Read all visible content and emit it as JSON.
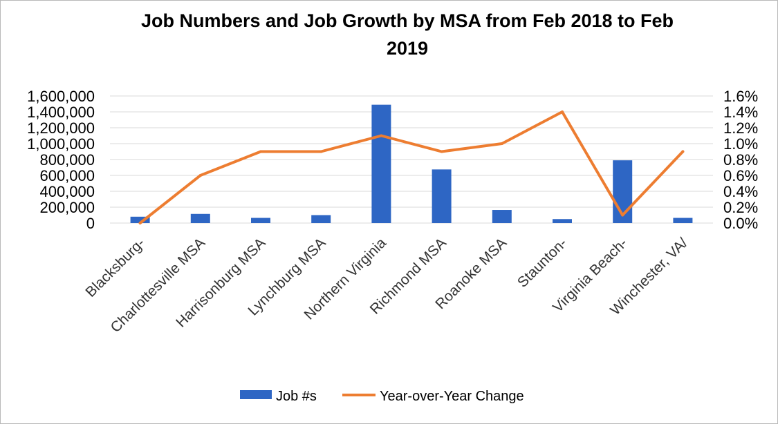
{
  "chart_data": {
    "type": "bar",
    "title_line1": "Job Numbers and Job Growth by MSA from Feb 2018 to Feb",
    "title_line2": "2019",
    "categories": [
      "Blacksburg-",
      "Charlottesville MSA",
      "Harrisonburg MSA",
      "Lynchburg MSA",
      "Northern Virginia",
      "Richmond MSA",
      "Roanoke MSA",
      "Staunton-",
      "Virginia Beach-",
      "Winchester, VA/"
    ],
    "series": [
      {
        "name": "Job #s",
        "type": "bar",
        "axis": "left",
        "color": "#2e66c4",
        "values": [
          80000,
          115000,
          65000,
          100000,
          1490000,
          675000,
          165000,
          50000,
          790000,
          65000
        ]
      },
      {
        "name": "Year-over-Year Change",
        "type": "line",
        "axis": "right",
        "color": "#ed7d31",
        "values": [
          0.0,
          0.6,
          0.9,
          0.9,
          1.1,
          0.9,
          1.0,
          1.4,
          0.1,
          0.9
        ]
      }
    ],
    "y_left": {
      "ylim": [
        0,
        1600000
      ],
      "ticks": [
        0,
        200000,
        400000,
        600000,
        800000,
        1000000,
        1200000,
        1400000,
        1600000
      ],
      "tick_labels": [
        "0",
        "200,000",
        "400,000",
        "600,000",
        "800,000",
        "1,000,000",
        "1,200,000",
        "1,400,000",
        "1,600,000"
      ]
    },
    "y_right": {
      "ylim": [
        0,
        1.6
      ],
      "ticks": [
        0,
        0.2,
        0.4,
        0.6,
        0.8,
        1.0,
        1.2,
        1.4,
        1.6
      ],
      "tick_labels": [
        "0.0%",
        "0.2%",
        "0.4%",
        "0.6%",
        "0.8%",
        "1.0%",
        "1.2%",
        "1.4%",
        "1.6%"
      ]
    },
    "grid": true,
    "legend_position": "bottom",
    "gridline_color": "#d9d9d9"
  }
}
